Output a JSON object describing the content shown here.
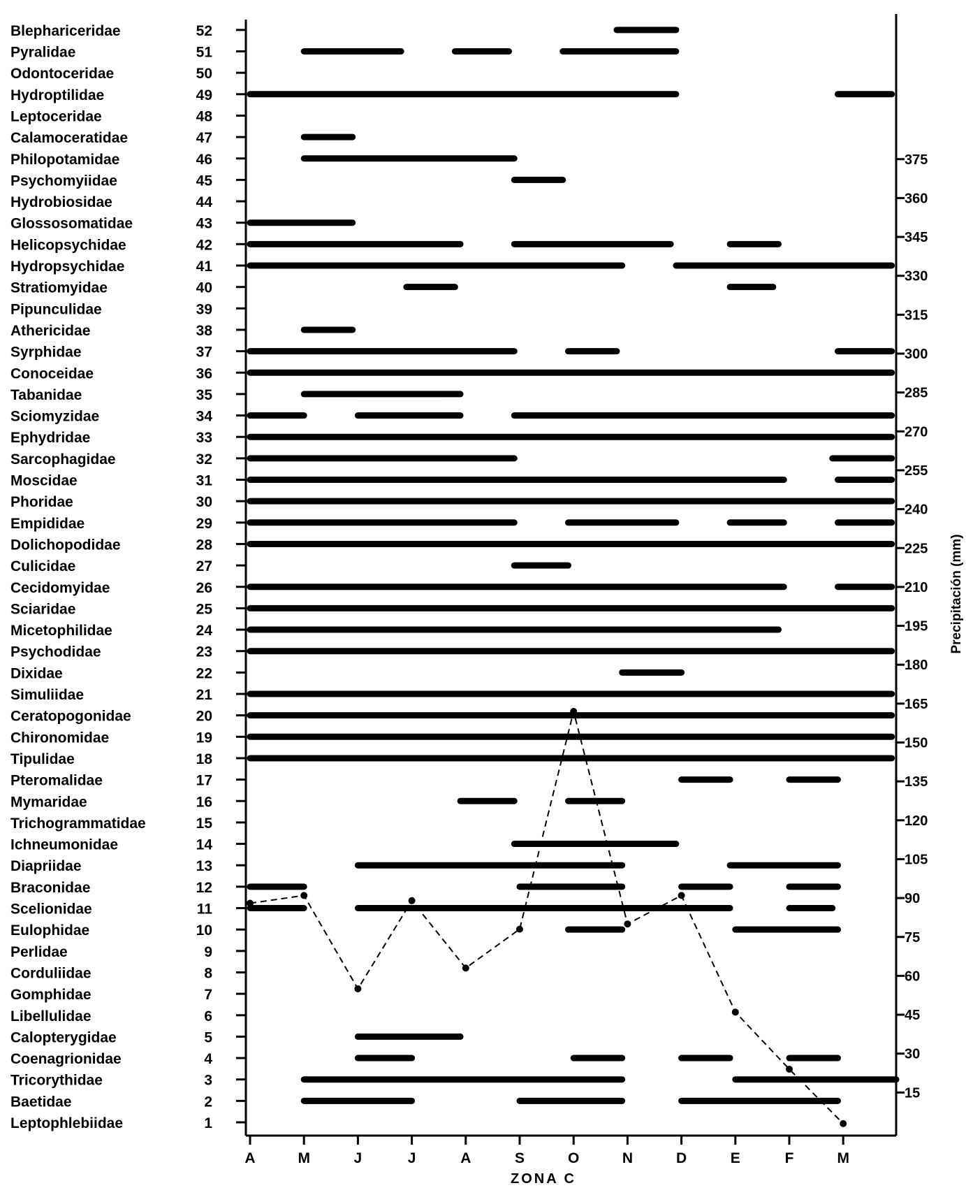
{
  "chart_data": {
    "type": "bar",
    "subtype": "presence-timeline-with-precipitation-line",
    "title": "ZONA C",
    "y2label": "Precipitación (mm)",
    "x_ticks": [
      "A",
      "M",
      "J",
      "J",
      "A",
      "S",
      "O",
      "N",
      "D",
      "E",
      "F",
      "M"
    ],
    "y2_ticks": [
      15,
      30,
      45,
      60,
      75,
      90,
      105,
      120,
      135,
      150,
      165,
      180,
      195,
      210,
      225,
      240,
      255,
      270,
      285,
      300,
      315,
      330,
      345,
      360,
      375
    ],
    "y2lim": [
      0,
      390
    ],
    "families": [
      {
        "n": 52,
        "name": "Blephariceridae",
        "bars": [
          [
            6.8,
            7.9
          ]
        ]
      },
      {
        "n": 51,
        "name": "Pyralidae",
        "bars": [
          [
            1,
            2.8
          ],
          [
            3.8,
            4.8
          ],
          [
            5.8,
            7.9
          ]
        ]
      },
      {
        "n": 50,
        "name": "Odontoceridae",
        "bars": []
      },
      {
        "n": 49,
        "name": "Hydroptilidae",
        "bars": [
          [
            0,
            7.9
          ],
          [
            10.9,
            11.9
          ]
        ]
      },
      {
        "n": 48,
        "name": "Leptoceridae",
        "bars": []
      },
      {
        "n": 47,
        "name": "Calamoceratidae",
        "bars": [
          [
            1,
            1.9
          ]
        ]
      },
      {
        "n": 46,
        "name": "Philopotamidae",
        "bars": [
          [
            1,
            4.9
          ]
        ]
      },
      {
        "n": 45,
        "name": "Psychomyiidae",
        "bars": [
          [
            4.9,
            5.8
          ]
        ]
      },
      {
        "n": 44,
        "name": "Hydrobiosidae",
        "bars": []
      },
      {
        "n": 43,
        "name": "Glossosomatidae",
        "bars": [
          [
            0,
            1.9
          ]
        ]
      },
      {
        "n": 42,
        "name": "Helicopsychidae",
        "bars": [
          [
            0,
            3.9
          ],
          [
            4.9,
            7.8
          ],
          [
            8.9,
            9.8
          ]
        ]
      },
      {
        "n": 41,
        "name": "Hydropsychidae",
        "bars": [
          [
            0,
            6.9
          ],
          [
            7.9,
            11.9
          ]
        ]
      },
      {
        "n": 40,
        "name": "Stratiomyidae",
        "bars": [
          [
            2.9,
            3.8
          ],
          [
            8.9,
            9.7
          ]
        ]
      },
      {
        "n": 39,
        "name": "Pipunculidae",
        "bars": []
      },
      {
        "n": 38,
        "name": "Athericidae",
        "bars": [
          [
            1,
            1.9
          ]
        ]
      },
      {
        "n": 37,
        "name": "Syrphidae",
        "bars": [
          [
            0,
            4.9
          ],
          [
            5.9,
            6.8
          ],
          [
            10.9,
            11.9
          ]
        ]
      },
      {
        "n": 36,
        "name": "Conoceidae",
        "bars": [
          [
            0,
            11.9
          ]
        ]
      },
      {
        "n": 35,
        "name": "Tabanidae",
        "bars": [
          [
            1,
            3.9
          ]
        ]
      },
      {
        "n": 34,
        "name": "Sciomyzidae",
        "bars": [
          [
            0,
            1
          ],
          [
            2,
            3.9
          ],
          [
            4.9,
            11.9
          ]
        ]
      },
      {
        "n": 33,
        "name": "Ephydridae",
        "bars": [
          [
            0,
            11.9
          ]
        ]
      },
      {
        "n": 32,
        "name": "Sarcophagidae",
        "bars": [
          [
            0,
            4.9
          ],
          [
            10.8,
            11.9
          ]
        ]
      },
      {
        "n": 31,
        "name": "Moscidae",
        "bars": [
          [
            0,
            9.9
          ],
          [
            10.9,
            11.9
          ]
        ]
      },
      {
        "n": 30,
        "name": "Phoridae",
        "bars": [
          [
            0,
            11.9
          ]
        ]
      },
      {
        "n": 29,
        "name": "Empididae",
        "bars": [
          [
            0,
            4.9
          ],
          [
            5.9,
            7.9
          ],
          [
            8.9,
            9.9
          ],
          [
            10.9,
            11.9
          ]
        ]
      },
      {
        "n": 28,
        "name": "Dolichopodidae",
        "bars": [
          [
            0,
            11.9
          ]
        ]
      },
      {
        "n": 27,
        "name": "Culicidae",
        "bars": [
          [
            4.9,
            5.9
          ]
        ]
      },
      {
        "n": 26,
        "name": "Cecidomyidae",
        "bars": [
          [
            0,
            9.9
          ],
          [
            10.9,
            11.9
          ]
        ]
      },
      {
        "n": 25,
        "name": "Sciaridae",
        "bars": [
          [
            0,
            11.9
          ]
        ]
      },
      {
        "n": 24,
        "name": "Micetophilidae",
        "bars": [
          [
            0,
            9.8
          ]
        ]
      },
      {
        "n": 23,
        "name": "Psychodidae",
        "bars": [
          [
            0,
            11.9
          ]
        ]
      },
      {
        "n": 22,
        "name": "Dixidae",
        "bars": [
          [
            6.9,
            8
          ]
        ]
      },
      {
        "n": 21,
        "name": "Simuliidae",
        "bars": [
          [
            0,
            11.9
          ]
        ]
      },
      {
        "n": 20,
        "name": "Ceratopogonidae",
        "bars": [
          [
            0,
            11.9
          ]
        ]
      },
      {
        "n": 19,
        "name": "Chironomidae",
        "bars": [
          [
            0,
            11.9
          ]
        ]
      },
      {
        "n": 18,
        "name": "Tipulidae",
        "bars": [
          [
            0,
            11.9
          ]
        ]
      },
      {
        "n": 17,
        "name": "Pteromalidae",
        "bars": [
          [
            8,
            8.9
          ],
          [
            10,
            10.9
          ]
        ]
      },
      {
        "n": 16,
        "name": "Mymaridae",
        "bars": [
          [
            3.9,
            4.9
          ],
          [
            5.9,
            6.9
          ]
        ]
      },
      {
        "n": 15,
        "name": "Trichogrammatidae",
        "bars": []
      },
      {
        "n": 14,
        "name": "Ichneumonidae",
        "bars": [
          [
            4.9,
            7.9
          ]
        ]
      },
      {
        "n": 13,
        "name": "Diapriidae",
        "bars": [
          [
            2,
            6.9
          ],
          [
            8.9,
            10.9
          ]
        ]
      },
      {
        "n": 12,
        "name": "Braconidae",
        "bars": [
          [
            0,
            1
          ],
          [
            5,
            6.9
          ],
          [
            8,
            8.9
          ],
          [
            10,
            10.9
          ]
        ]
      },
      {
        "n": 11,
        "name": "Scelionidae",
        "bars": [
          [
            0,
            1
          ],
          [
            2,
            8.9
          ],
          [
            10,
            10.8
          ]
        ]
      },
      {
        "n": 10,
        "name": "Eulophidae",
        "bars": [
          [
            5.9,
            6.9
          ],
          [
            9,
            10.9
          ]
        ]
      },
      {
        "n": 9,
        "name": "Perlidae",
        "bars": []
      },
      {
        "n": 8,
        "name": "Corduliidae",
        "bars": []
      },
      {
        "n": 7,
        "name": "Gomphidae",
        "bars": []
      },
      {
        "n": 6,
        "name": "Libellulidae",
        "bars": []
      },
      {
        "n": 5,
        "name": "Calopterygidae",
        "bars": [
          [
            2,
            3.9
          ]
        ]
      },
      {
        "n": 4,
        "name": "Coenagrionidae",
        "bars": [
          [
            2,
            3
          ],
          [
            6,
            6.9
          ],
          [
            8,
            8.9
          ],
          [
            10,
            10.9
          ]
        ]
      },
      {
        "n": 3,
        "name": "Tricorythidae",
        "bars": [
          [
            1,
            6.9
          ],
          [
            9,
            12
          ]
        ]
      },
      {
        "n": 2,
        "name": "Baetidae",
        "bars": [
          [
            1,
            3
          ],
          [
            5,
            6.9
          ],
          [
            8,
            10.9
          ]
        ]
      },
      {
        "n": 1,
        "name": "Leptophlebiidae",
        "bars": []
      }
    ],
    "precipitation": {
      "x": [
        0,
        1,
        2,
        3,
        4,
        5,
        6,
        7,
        8,
        9,
        10,
        11
      ],
      "values": [
        88,
        91,
        55,
        89,
        63,
        78,
        162,
        80,
        91,
        46,
        24,
        3
      ]
    }
  }
}
